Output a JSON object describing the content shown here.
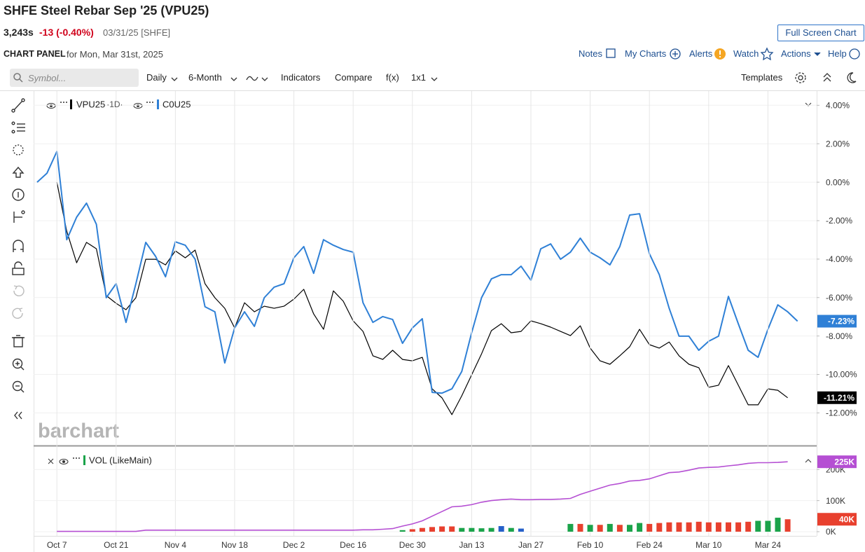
{
  "header": {
    "title": "SHFE Steel Rebar Sep '25 (VPU25)",
    "last": "3,243s",
    "change": "-13 (-0.40%)",
    "date": "03/31/25 [SHFE]",
    "panel": "CHART PANEL",
    "panel_date": "for Mon, Mar 31st, 2025",
    "full_screen": "Full Screen Chart"
  },
  "menu": [
    "Notes",
    "My Charts",
    "Alerts",
    "Watch",
    "Actions",
    "Help"
  ],
  "toolbar": {
    "symbol": "Symbol...",
    "items": [
      "Daily",
      "6-Month",
      "Indicators",
      "Compare",
      "f(x)",
      "1x1"
    ],
    "templates": "Templates"
  },
  "watermark": "barchart",
  "chart_data": [
    {
      "type": "line",
      "categories": [
        null,
        null,
        "Oct 7",
        null,
        null,
        null,
        null,
        null,
        "Oct 21",
        null,
        null,
        null,
        null,
        null,
        "Nov 4",
        null,
        null,
        null,
        null,
        null,
        "Nov 18",
        null,
        null,
        null,
        null,
        null,
        "Dec 2",
        null,
        null,
        null,
        null,
        null,
        "Dec 16",
        null,
        null,
        null,
        null,
        null,
        "Dec 30",
        null,
        null,
        null,
        null,
        null,
        "Jan 13",
        null,
        null,
        null,
        null,
        null,
        "Jan 27",
        null,
        null,
        null,
        null,
        null,
        "Feb 10",
        null,
        null,
        null,
        null,
        null,
        "Feb 24",
        null,
        null,
        null,
        null,
        null,
        "Mar 10",
        null,
        null,
        null,
        null,
        null,
        "Mar 24",
        null,
        null,
        null
      ],
      "series": [
        {
          "name": "VPU25",
          "interval": "·1D·",
          "color": "#000000",
          "values": [
            null,
            null,
            0,
            -2.55,
            -4.19,
            -3.13,
            -3.46,
            -5.9,
            -6.3,
            -6.63,
            -6.01,
            -4.01,
            -4.01,
            -4.3,
            -3.57,
            -3.93,
            -3.53,
            -5.28,
            -6.01,
            -6.56,
            -7.58,
            -6.27,
            -6.74,
            -6.45,
            -6.56,
            -6.45,
            -6.08,
            -5.57,
            -6.85,
            -7.65,
            -5.65,
            -6.19,
            -7.21,
            -7.76,
            -9.03,
            -9.22,
            -8.74,
            -9.22,
            -9.29,
            -9.11,
            -10.75,
            -11.22,
            -12.09,
            -11.11,
            -10.02,
            -8.93,
            -7.72,
            -7.36,
            -7.83,
            -7.76,
            -7.21,
            -7.36,
            -7.54,
            -7.76,
            -7.98,
            -7.47,
            -8.63,
            -9.29,
            -9.47,
            -9.03,
            -8.56,
            -7.65,
            -8.45,
            -8.63,
            -8.31,
            -9.03,
            -9.47,
            -9.65,
            -10.67,
            -10.56,
            -9.54,
            -10.56,
            -11.58,
            -11.58,
            -10.75,
            -10.82,
            -11.21,
            null
          ],
          "value_labels": [
            null,
            null,
            null,
            null,
            null,
            null,
            null,
            null,
            null,
            null,
            null,
            null,
            null,
            null,
            null,
            null,
            null,
            null,
            null,
            null,
            null,
            null,
            null,
            null,
            null,
            null,
            null,
            null,
            null,
            null,
            null,
            null,
            null,
            null,
            null,
            null,
            null,
            null,
            null,
            null,
            null,
            null,
            null,
            null,
            null,
            null,
            null,
            null,
            null,
            null,
            null,
            null,
            null,
            null,
            null,
            null,
            null,
            null,
            null,
            null,
            null,
            null,
            null,
            null,
            null,
            null,
            null,
            null,
            null,
            null,
            null,
            null,
            null,
            null,
            null,
            null,
            "-11.21%",
            null
          ]
        },
        {
          "name": "C0U25",
          "color": "#2f80d6",
          "values": [
            0,
            0.47,
            1.6,
            -2.99,
            -1.82,
            -1.09,
            -2.19,
            -6.01,
            -5.28,
            -7.29,
            -5.28,
            -3.13,
            -3.86,
            -4.92,
            -3.1,
            -3.28,
            -4.01,
            -6.48,
            -6.74,
            -9.4,
            -7.58,
            -6.74,
            -7.5,
            -6.01,
            -5.46,
            -5.28,
            -3.93,
            -3.35,
            -4.74,
            -2.99,
            -3.28,
            -3.5,
            -3.64,
            -6.27,
            -7.29,
            -6.99,
            -7.14,
            -8.38,
            -7.58,
            -7.1,
            -10.93,
            -10.97,
            -10.75,
            -9.84,
            -7.83,
            -6.01,
            -5.03,
            -4.81,
            -4.81,
            -4.37,
            -5.1,
            -3.46,
            -3.21,
            -4.01,
            -3.64,
            -2.91,
            -3.64,
            -3.93,
            -4.3,
            -3.35,
            -1.71,
            -1.64,
            -3.72,
            -4.81,
            -6.56,
            -8.01,
            -8.01,
            -8.74,
            -8.27,
            -8.01,
            -5.94,
            -7.36,
            -8.74,
            -9.11,
            -7.65,
            -6.38,
            -6.74,
            -7.23
          ],
          "value_labels": [
            null,
            null,
            null,
            null,
            null,
            null,
            null,
            null,
            null,
            null,
            null,
            null,
            null,
            null,
            null,
            null,
            null,
            null,
            null,
            null,
            null,
            null,
            null,
            null,
            null,
            null,
            null,
            null,
            null,
            null,
            null,
            null,
            null,
            null,
            null,
            null,
            null,
            null,
            null,
            null,
            null,
            null,
            null,
            null,
            null,
            null,
            null,
            null,
            null,
            null,
            null,
            null,
            null,
            null,
            null,
            null,
            null,
            null,
            null,
            null,
            null,
            null,
            null,
            null,
            null,
            null,
            null,
            null,
            null,
            null,
            null,
            null,
            null,
            null,
            null,
            null,
            null,
            "-7.23%"
          ]
        }
      ],
      "ylim": [
        -13.66,
        4.74
      ],
      "yticks": [
        {
          "value": 4,
          "label": "4.00%"
        },
        {
          "value": 2,
          "label": "2.00%"
        },
        {
          "value": 0,
          "label": "0.00%"
        },
        {
          "value": -2,
          "label": "-2.00%"
        },
        {
          "value": -4,
          "label": "-4.00%"
        },
        {
          "value": -6,
          "label": "-6.00%"
        },
        {
          "value": -8,
          "label": "-8.00%"
        },
        {
          "value": -10,
          "label": "-10.00%"
        },
        {
          "value": -12,
          "label": "-12.00%"
        }
      ],
      "grid": true
    },
    {
      "type": "bar",
      "title": "VOL (LikeMain)",
      "legend_color": "#1aa34a",
      "values": [
        null,
        null,
        null,
        null,
        null,
        null,
        null,
        null,
        null,
        null,
        null,
        null,
        null,
        null,
        null,
        null,
        null,
        null,
        null,
        null,
        null,
        null,
        null,
        null,
        null,
        null,
        null,
        null,
        null,
        null,
        null,
        null,
        null,
        null,
        null,
        null,
        null,
        5000,
        8000,
        12000,
        15000,
        17000,
        17000,
        12000,
        12000,
        11000,
        12000,
        18000,
        12000,
        10000,
        null,
        null,
        null,
        null,
        25000,
        25000,
        22000,
        22000,
        25000,
        22000,
        22000,
        28000,
        25000,
        28000,
        30000,
        30000,
        30000,
        32000,
        30000,
        30000,
        30000,
        30000,
        32000,
        35000,
        35000,
        45000,
        40000,
        null
      ],
      "colors": [
        null,
        null,
        null,
        null,
        null,
        null,
        null,
        null,
        null,
        null,
        null,
        null,
        null,
        null,
        null,
        null,
        null,
        null,
        null,
        null,
        null,
        null,
        null,
        null,
        null,
        null,
        null,
        null,
        null,
        null,
        null,
        null,
        null,
        null,
        null,
        null,
        null,
        "#1aa34a",
        "#e8402e",
        "#e8402e",
        "#e8402e",
        "#e8402e",
        "#e8402e",
        "#1aa34a",
        "#1aa34a",
        "#1aa34a",
        "#1aa34a",
        "#2560c9",
        "#1aa34a",
        "#2560c9",
        null,
        null,
        null,
        null,
        "#1aa34a",
        "#e8402e",
        "#1aa34a",
        "#e8402e",
        "#1aa34a",
        "#e8402e",
        "#1aa34a",
        "#1aa34a",
        "#e8402e",
        "#e8402e",
        "#e8402e",
        "#e8402e",
        "#e8402e",
        "#e8402e",
        "#e8402e",
        "#e8402e",
        "#e8402e",
        "#e8402e",
        "#e8402e",
        "#1aa34a",
        "#1aa34a",
        "#1aa34a",
        "#e8402e",
        null
      ],
      "value_labels": [
        null,
        null,
        null,
        null,
        null,
        null,
        null,
        null,
        null,
        null,
        null,
        null,
        null,
        null,
        null,
        null,
        null,
        null,
        null,
        null,
        null,
        null,
        null,
        null,
        null,
        null,
        null,
        null,
        null,
        null,
        null,
        null,
        null,
        null,
        null,
        null,
        null,
        null,
        null,
        null,
        null,
        null,
        null,
        null,
        null,
        null,
        null,
        null,
        null,
        null,
        null,
        null,
        null,
        null,
        null,
        null,
        null,
        null,
        null,
        null,
        null,
        null,
        null,
        null,
        null,
        null,
        null,
        null,
        null,
        null,
        null,
        null,
        null,
        null,
        null,
        null,
        "40K",
        null
      ],
      "line": {
        "color": "#b54fd3",
        "values": [
          null,
          null,
          1000,
          1000,
          1000,
          1000,
          1000,
          1000,
          1000,
          1000,
          1000,
          5000,
          5000,
          5000,
          5000,
          5000,
          5000,
          5000,
          5000,
          5000,
          5000,
          5000,
          5000,
          5000,
          5000,
          5000,
          5000,
          5000,
          5000,
          5000,
          5000,
          5000,
          5000,
          6000,
          6000,
          8000,
          10000,
          18000,
          25000,
          35000,
          50000,
          65000,
          80000,
          82000,
          87000,
          95000,
          100000,
          103000,
          105000,
          103000,
          103000,
          104000,
          104000,
          105000,
          107000,
          120000,
          130000,
          140000,
          150000,
          155000,
          163000,
          165000,
          170000,
          180000,
          190000,
          192000,
          198000,
          205000,
          207000,
          208000,
          212000,
          215000,
          220000,
          222000,
          222000,
          223000,
          225000,
          null
        ],
        "value_labels": [
          null,
          null,
          null,
          null,
          null,
          null,
          null,
          null,
          null,
          null,
          null,
          null,
          null,
          null,
          null,
          null,
          null,
          null,
          null,
          null,
          null,
          null,
          null,
          null,
          null,
          null,
          null,
          null,
          null,
          null,
          null,
          null,
          null,
          null,
          null,
          null,
          null,
          null,
          null,
          null,
          null,
          null,
          null,
          null,
          null,
          null,
          null,
          null,
          null,
          null,
          null,
          null,
          null,
          null,
          null,
          null,
          null,
          null,
          null,
          null,
          null,
          null,
          null,
          null,
          null,
          null,
          null,
          null,
          null,
          null,
          null,
          null,
          null,
          null,
          null,
          null,
          "225K",
          null
        ]
      },
      "ylim": [
        -13500,
        275000
      ],
      "yticks": [
        {
          "value": 0,
          "label": "0K"
        },
        {
          "value": 100000,
          "label": "100K"
        },
        {
          "value": 200000,
          "label": "200K"
        }
      ],
      "grid": true
    }
  ]
}
